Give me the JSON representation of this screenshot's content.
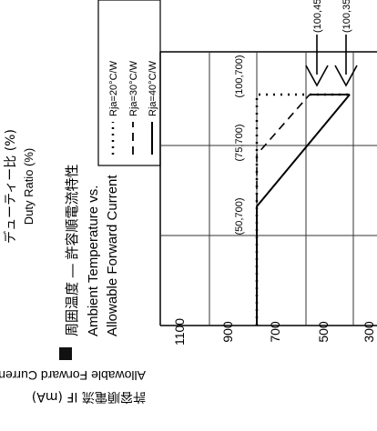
{
  "header": {
    "duty_jp": "デューティー比 (%)",
    "duty_en": "Duty Ratio (%)",
    "title_jp": "周囲温度 ― 許容順電流特性",
    "title_en_1": "Ambient Temperature vs.",
    "title_en_2": "Allowable Forward Current"
  },
  "bullet_marker": "■",
  "legend": {
    "items": [
      {
        "label": "Rja=20°C/W",
        "style": "dotted"
      },
      {
        "label": "Rja=30°C/W",
        "style": "dashed"
      },
      {
        "label": "Rja=40°C/W",
        "style": "solid"
      }
    ]
  },
  "axis": {
    "ylabel_jp": "許容順電流 IF (mA)",
    "ylabel_en": "Allowable Forward Current IF (mA)",
    "ticks": [
      "1100",
      "900",
      "700",
      "500",
      "300"
    ]
  },
  "annotations": {
    "point_a": "(50,700)",
    "point_b": "(75,700)",
    "point_c": "(100,700)",
    "arrow_1": "(100,45",
    "arrow_2": "(100,35"
  },
  "chart_data": {
    "type": "line",
    "title": "Ambient Temperature vs. Allowable Forward Current",
    "ylabel": "Allowable Forward Current IF (mA)",
    "ytick_values": [
      1100,
      900,
      700,
      500,
      300
    ],
    "series": [
      {
        "name": "Rja=20°C/W",
        "style": "dotted",
        "x": [
          0,
          100,
          100
        ],
        "y": [
          700,
          700,
          450
        ]
      },
      {
        "name": "Rja=30°C/W",
        "style": "dashed",
        "x": [
          0,
          75,
          100
        ],
        "y": [
          700,
          700,
          350
        ]
      },
      {
        "name": "Rja=40°C/W",
        "style": "solid",
        "x": [
          0,
          50,
          100
        ],
        "y": [
          700,
          700,
          350
        ]
      }
    ]
  }
}
